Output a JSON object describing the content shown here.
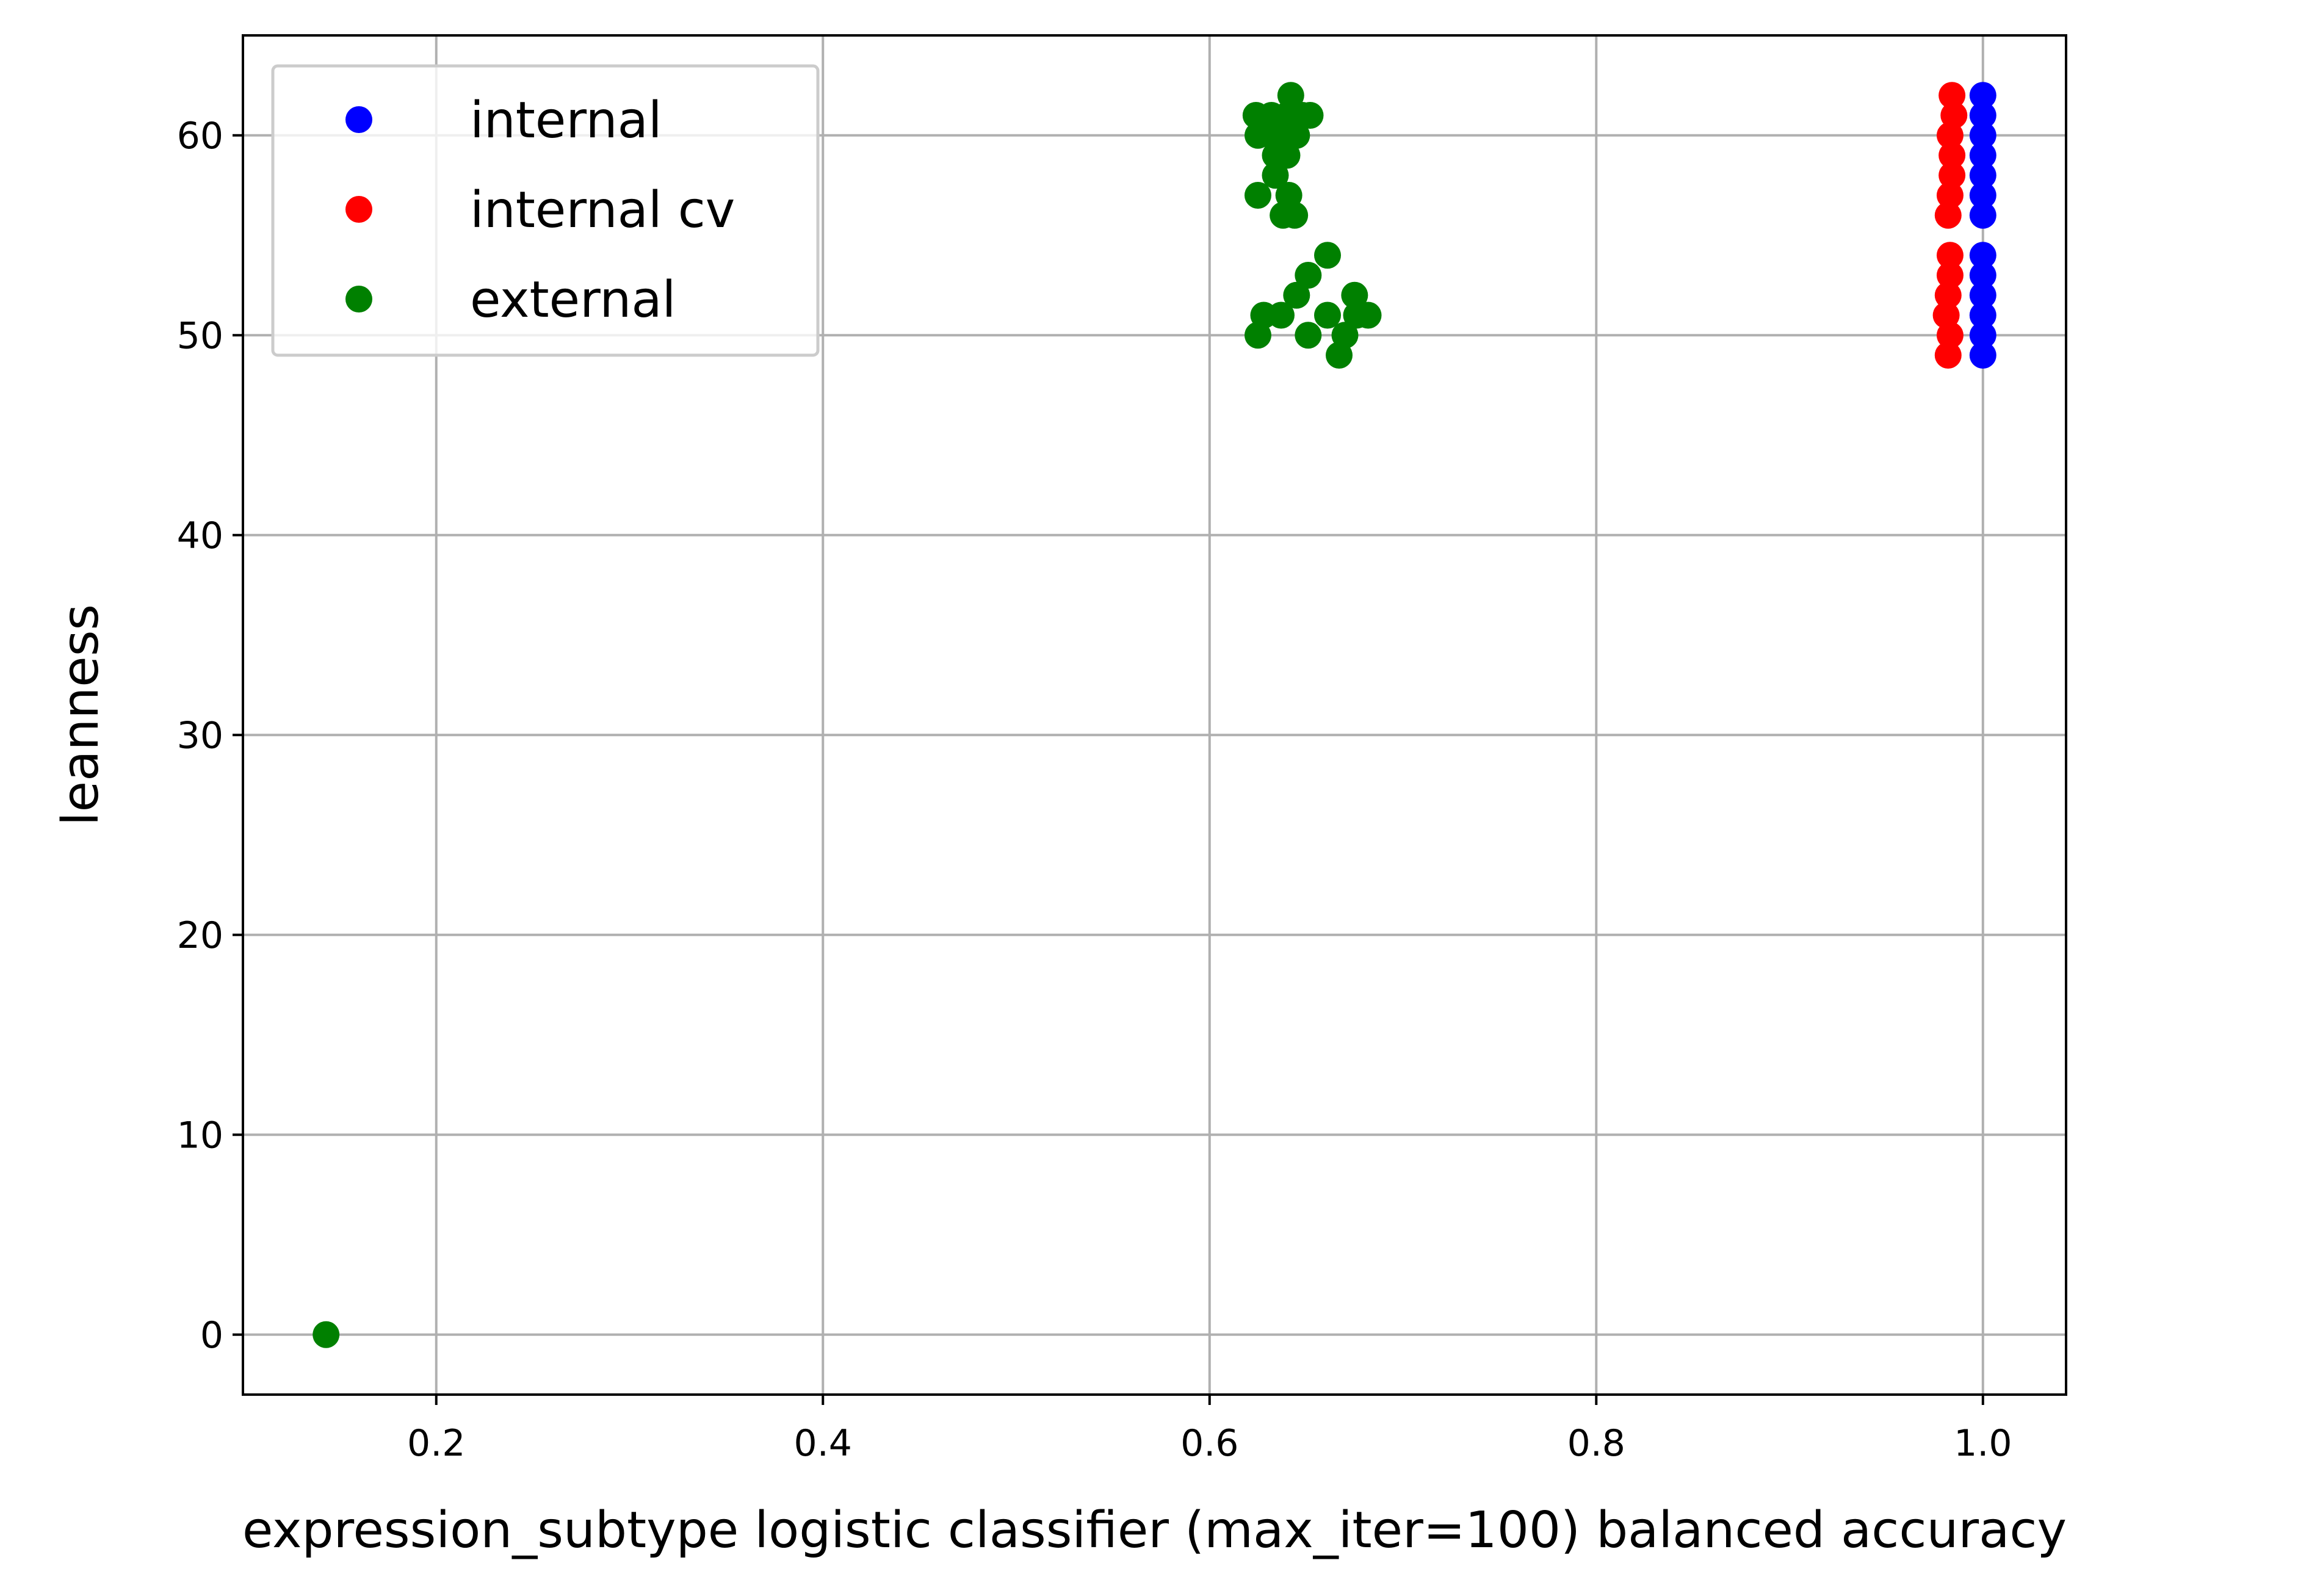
{
  "chart_data": {
    "type": "scatter",
    "title": "",
    "xlabel": "expression_subtype logistic classifier (max_iter=100) balanced accuracy",
    "ylabel": "leanness",
    "xlim": [
      0.1,
      1.043
    ],
    "ylim": [
      -3.0,
      65.0
    ],
    "xticks": [
      0.2,
      0.4,
      0.6,
      0.8,
      1.0
    ],
    "xtick_labels": [
      "0.2",
      "0.4",
      "0.6",
      "0.8",
      "1.0"
    ],
    "yticks": [
      0,
      10,
      20,
      30,
      40,
      50,
      60
    ],
    "ytick_labels": [
      "0",
      "10",
      "20",
      "30",
      "40",
      "50",
      "60"
    ],
    "grid": true,
    "legend_position": "top-left",
    "series": [
      {
        "name": "internal",
        "color": "#0000ff",
        "points": [
          [
            1.0,
            49
          ],
          [
            1.0,
            50
          ],
          [
            1.0,
            51
          ],
          [
            1.0,
            52
          ],
          [
            1.0,
            53
          ],
          [
            1.0,
            54
          ],
          [
            1.0,
            56
          ],
          [
            1.0,
            57
          ],
          [
            1.0,
            58
          ],
          [
            1.0,
            59
          ],
          [
            1.0,
            60
          ],
          [
            1.0,
            61
          ],
          [
            1.0,
            62
          ]
        ]
      },
      {
        "name": "internal cv",
        "color": "#ff0000",
        "points": [
          [
            0.982,
            49
          ],
          [
            0.983,
            50
          ],
          [
            0.981,
            51
          ],
          [
            0.982,
            52
          ],
          [
            0.983,
            53
          ],
          [
            0.983,
            54
          ],
          [
            0.982,
            56
          ],
          [
            0.983,
            57
          ],
          [
            0.984,
            58
          ],
          [
            0.984,
            59
          ],
          [
            0.983,
            60
          ],
          [
            0.985,
            61
          ],
          [
            0.984,
            62
          ]
        ]
      },
      {
        "name": "external",
        "color": "#008000",
        "points": [
          [
            0.143,
            0
          ],
          [
            0.625,
            50
          ],
          [
            0.628,
            51
          ],
          [
            0.637,
            51
          ],
          [
            0.645,
            52
          ],
          [
            0.651,
            53
          ],
          [
            0.661,
            54
          ],
          [
            0.651,
            50
          ],
          [
            0.661,
            51
          ],
          [
            0.667,
            49
          ],
          [
            0.67,
            50
          ],
          [
            0.675,
            52
          ],
          [
            0.676,
            51
          ],
          [
            0.682,
            51
          ],
          [
            0.625,
            57
          ],
          [
            0.634,
            58
          ],
          [
            0.638,
            56
          ],
          [
            0.641,
            57
          ],
          [
            0.644,
            56
          ],
          [
            0.634,
            59
          ],
          [
            0.64,
            59
          ],
          [
            0.625,
            60
          ],
          [
            0.632,
            60
          ],
          [
            0.639,
            60
          ],
          [
            0.645,
            60
          ],
          [
            0.624,
            61
          ],
          [
            0.632,
            61
          ],
          [
            0.64,
            61
          ],
          [
            0.648,
            61
          ],
          [
            0.652,
            61
          ],
          [
            0.642,
            62
          ]
        ]
      }
    ]
  }
}
